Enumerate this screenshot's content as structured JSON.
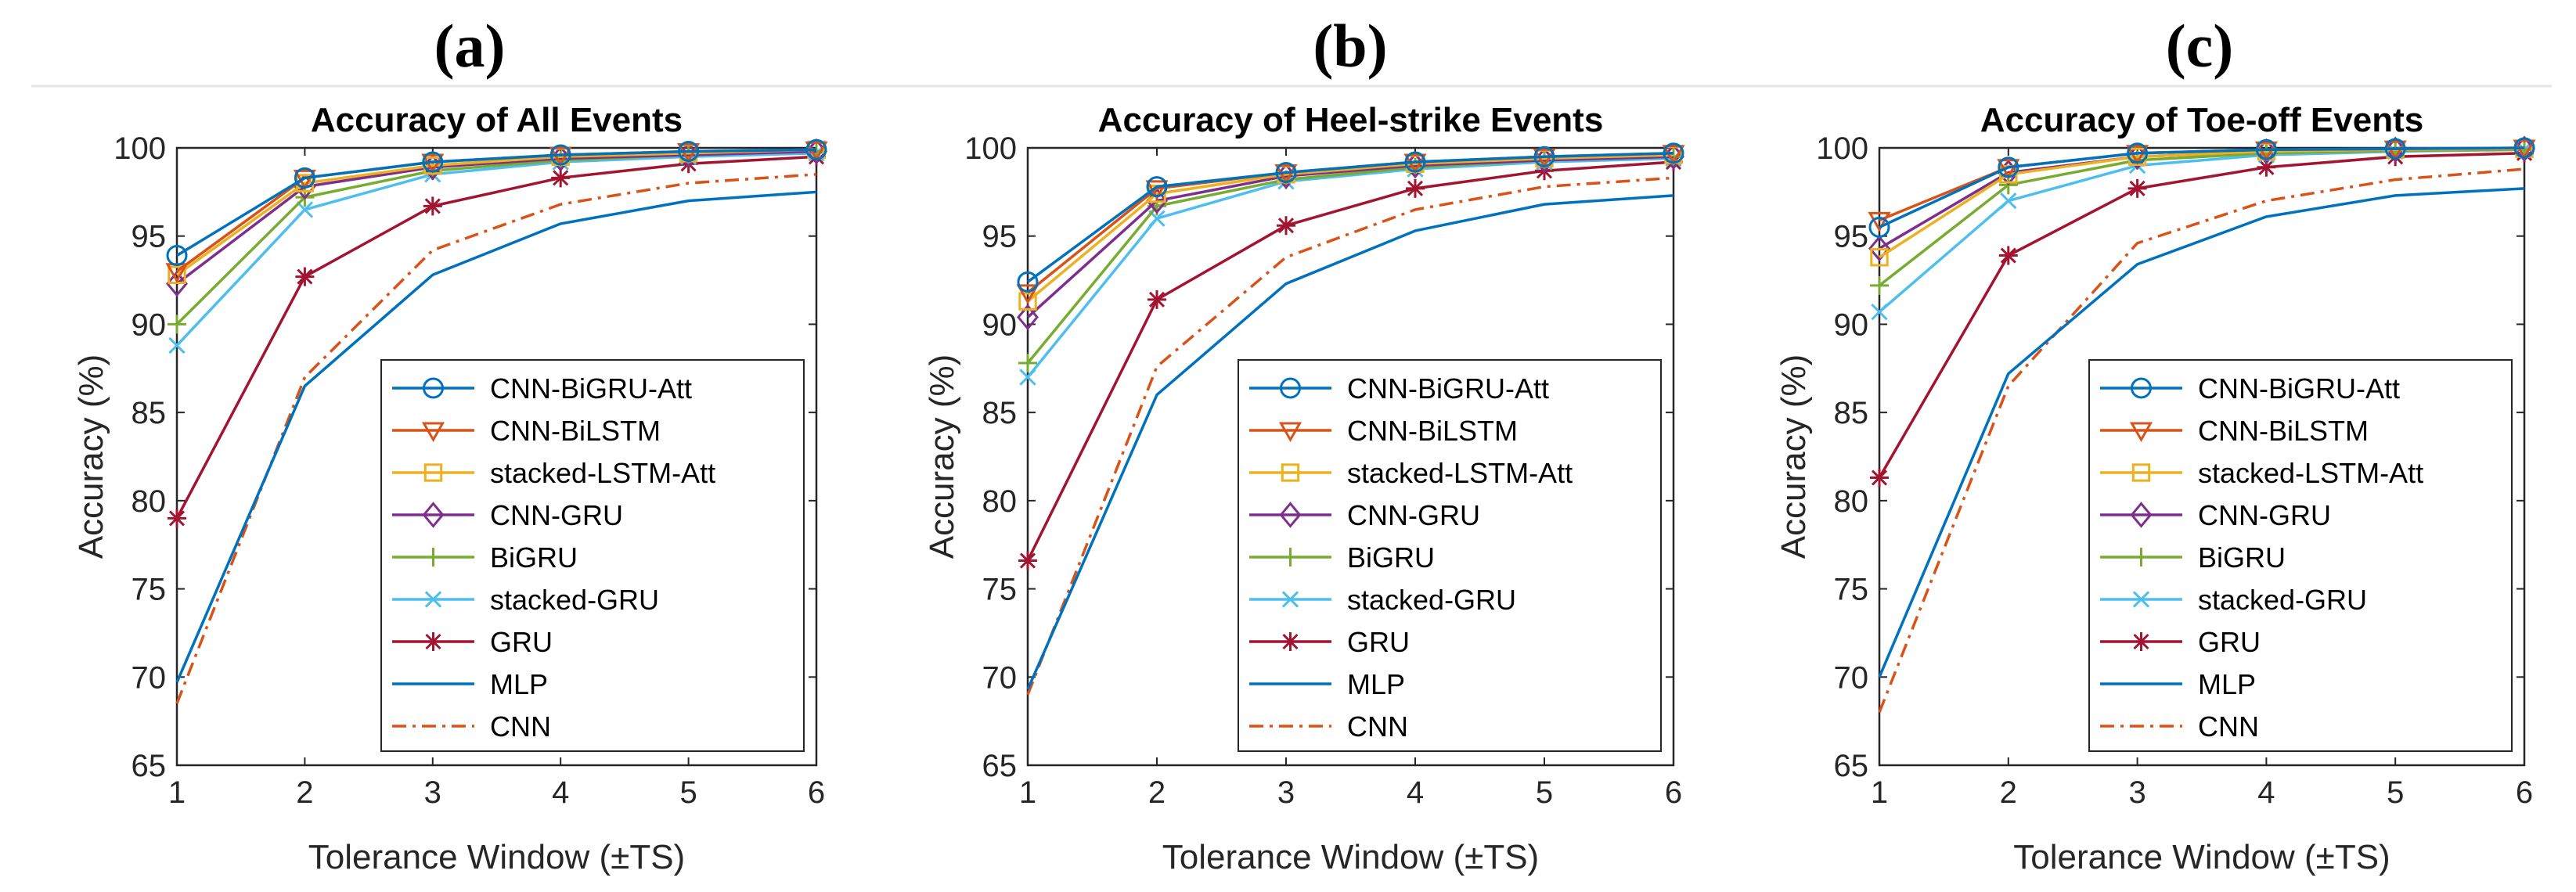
{
  "chart_data": [
    {
      "type": "line",
      "panel_label": "(a)",
      "title": "Accuracy of All Events",
      "xlabel": "Tolerance Window (±TS)",
      "ylabel": "Accuracy (%)",
      "xlim": [
        1,
        6
      ],
      "ylim": [
        65,
        100
      ],
      "xticks": [
        1,
        2,
        3,
        4,
        5,
        6
      ],
      "yticks": [
        65,
        70,
        75,
        80,
        85,
        90,
        95,
        100
      ],
      "legend_position": "bottom-right",
      "x": [
        1,
        2,
        3,
        4,
        5,
        6
      ],
      "series": [
        {
          "name": "CNN-BiGRU-Att",
          "values": [
            93.9,
            98.3,
            99.2,
            99.6,
            99.8,
            99.9
          ]
        },
        {
          "name": "CNN-BiLSTM",
          "values": [
            93.0,
            98.3,
            99.2,
            99.6,
            99.8,
            99.9
          ]
        },
        {
          "name": "stacked-LSTM-Att",
          "values": [
            92.8,
            98.0,
            99.0,
            99.5,
            99.7,
            99.9
          ]
        },
        {
          "name": "CNN-GRU",
          "values": [
            92.3,
            97.8,
            98.9,
            99.4,
            99.6,
            99.8
          ]
        },
        {
          "name": "BiGRU",
          "values": [
            90.0,
            97.2,
            98.7,
            99.3,
            99.6,
            99.8
          ]
        },
        {
          "name": "stacked-GRU",
          "values": [
            88.8,
            96.5,
            98.5,
            99.2,
            99.5,
            99.7
          ]
        },
        {
          "name": "GRU",
          "values": [
            79.0,
            92.7,
            96.7,
            98.3,
            99.1,
            99.5
          ]
        },
        {
          "name": "MLP",
          "values": [
            69.7,
            86.5,
            92.8,
            95.7,
            97.0,
            97.5
          ]
        },
        {
          "name": "CNN",
          "values": [
            68.5,
            87.0,
            94.2,
            96.8,
            98.0,
            98.5
          ]
        }
      ]
    },
    {
      "type": "line",
      "panel_label": "(b)",
      "title": "Accuracy of Heel-strike Events",
      "xlabel": "Tolerance Window (±TS)",
      "ylabel": "Accuracy (%)",
      "xlim": [
        1,
        6
      ],
      "ylim": [
        65,
        100
      ],
      "xticks": [
        1,
        2,
        3,
        4,
        5,
        6
      ],
      "yticks": [
        65,
        70,
        75,
        80,
        85,
        90,
        95,
        100
      ],
      "legend_position": "bottom-right",
      "x": [
        1,
        2,
        3,
        4,
        5,
        6
      ],
      "series": [
        {
          "name": "CNN-BiGRU-Att",
          "values": [
            92.4,
            97.8,
            98.6,
            99.2,
            99.5,
            99.7
          ]
        },
        {
          "name": "CNN-BiLSTM",
          "values": [
            91.8,
            97.7,
            98.6,
            99.2,
            99.5,
            99.7
          ]
        },
        {
          "name": "stacked-LSTM-Att",
          "values": [
            91.3,
            97.4,
            98.5,
            99.1,
            99.4,
            99.6
          ]
        },
        {
          "name": "CNN-GRU",
          "values": [
            90.4,
            97.0,
            98.4,
            99.0,
            99.3,
            99.5
          ]
        },
        {
          "name": "BiGRU",
          "values": [
            87.8,
            96.7,
            98.2,
            98.9,
            99.3,
            99.5
          ]
        },
        {
          "name": "stacked-GRU",
          "values": [
            87.0,
            96.0,
            98.1,
            98.8,
            99.2,
            99.4
          ]
        },
        {
          "name": "GRU",
          "values": [
            76.6,
            91.4,
            95.6,
            97.7,
            98.7,
            99.2
          ]
        },
        {
          "name": "MLP",
          "values": [
            69.3,
            86.0,
            92.3,
            95.3,
            96.8,
            97.3
          ]
        },
        {
          "name": "CNN",
          "values": [
            69.0,
            87.6,
            93.8,
            96.5,
            97.8,
            98.3
          ]
        }
      ]
    },
    {
      "type": "line",
      "panel_label": "(c)",
      "title": "Accuracy of Toe-off Events",
      "xlabel": "Tolerance Window (±TS)",
      "ylabel": "Accuracy (%)",
      "xlim": [
        1,
        6
      ],
      "ylim": [
        65,
        100
      ],
      "xticks": [
        1,
        2,
        3,
        4,
        5,
        6
      ],
      "yticks": [
        65,
        70,
        75,
        80,
        85,
        90,
        95,
        100
      ],
      "legend_position": "bottom-right",
      "x": [
        1,
        2,
        3,
        4,
        5,
        6
      ],
      "series": [
        {
          "name": "CNN-BiGRU-Att",
          "values": [
            95.5,
            98.9,
            99.7,
            99.9,
            99.95,
            100.0
          ]
        },
        {
          "name": "CNN-BiLSTM",
          "values": [
            95.9,
            98.9,
            99.7,
            99.9,
            99.95,
            100.0
          ]
        },
        {
          "name": "stacked-LSTM-Att",
          "values": [
            93.8,
            98.5,
            99.5,
            99.8,
            99.9,
            99.95
          ]
        },
        {
          "name": "CNN-GRU",
          "values": [
            94.3,
            98.6,
            99.5,
            99.8,
            99.9,
            99.95
          ]
        },
        {
          "name": "BiGRU",
          "values": [
            92.2,
            97.9,
            99.3,
            99.7,
            99.85,
            99.9
          ]
        },
        {
          "name": "stacked-GRU",
          "values": [
            90.7,
            97.0,
            99.0,
            99.6,
            99.8,
            99.9
          ]
        },
        {
          "name": "GRU",
          "values": [
            81.3,
            93.9,
            97.7,
            98.9,
            99.5,
            99.7
          ]
        },
        {
          "name": "MLP",
          "values": [
            70.0,
            87.2,
            93.4,
            96.1,
            97.3,
            97.7
          ]
        },
        {
          "name": "CNN",
          "values": [
            68.0,
            86.5,
            94.6,
            97.0,
            98.2,
            98.8
          ]
        }
      ]
    }
  ],
  "series_styles": [
    {
      "name": "CNN-BiGRU-Att",
      "color": "#0072BD",
      "marker": "circle",
      "dash": "solid"
    },
    {
      "name": "CNN-BiLSTM",
      "color": "#D95319",
      "marker": "triangle-down",
      "dash": "solid"
    },
    {
      "name": "stacked-LSTM-Att",
      "color": "#EDB120",
      "marker": "square",
      "dash": "solid"
    },
    {
      "name": "CNN-GRU",
      "color": "#7E2F8E",
      "marker": "diamond",
      "dash": "solid"
    },
    {
      "name": "BiGRU",
      "color": "#77AC30",
      "marker": "plus",
      "dash": "solid"
    },
    {
      "name": "stacked-GRU",
      "color": "#4DBEEE",
      "marker": "x",
      "dash": "solid"
    },
    {
      "name": "GRU",
      "color": "#A2142F",
      "marker": "asterisk",
      "dash": "solid"
    },
    {
      "name": "MLP",
      "color": "#0072BD",
      "marker": "none",
      "dash": "solid"
    },
    {
      "name": "CNN",
      "color": "#D95319",
      "marker": "none",
      "dash": "dashdot"
    }
  ],
  "colors": {
    "axis": "#262626",
    "background": "#ffffff",
    "separator": "#e6e6e6"
  }
}
